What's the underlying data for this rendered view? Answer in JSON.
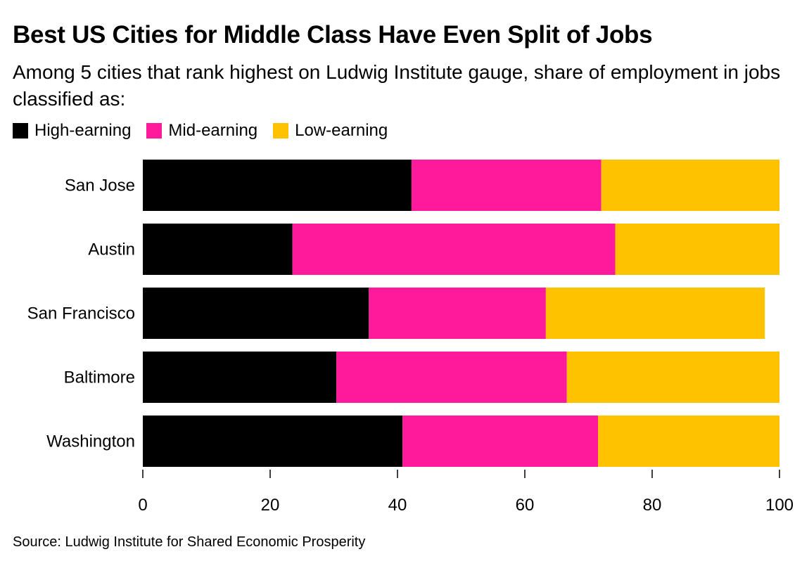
{
  "title": "Best US Cities for Middle Class Have Even Split of Jobs",
  "subtitle": "Among 5 cities that rank highest on Ludwig Institute gauge, share of employment in jobs classified as:",
  "source": "Source: Ludwig Institute for Shared Economic Prosperity",
  "chart_data": {
    "type": "bar",
    "orientation": "horizontal",
    "stacked": true,
    "categories": [
      "San Jose",
      "Austin",
      "San Francisco",
      "Baltimore",
      "Washington"
    ],
    "series": [
      {
        "name": "High-earning",
        "color": "#000000",
        "values": [
          42.2,
          23.5,
          35.5,
          30.4,
          40.8
        ]
      },
      {
        "name": "Mid-earning",
        "color": "#ff1a9c",
        "values": [
          29.8,
          50.7,
          27.8,
          36.2,
          30.7
        ]
      },
      {
        "name": "Low-earning",
        "color": "#ffc200",
        "values": [
          28.0,
          25.8,
          34.4,
          33.4,
          28.5
        ]
      }
    ],
    "xlim": [
      0,
      100
    ],
    "xticks": [
      0,
      20,
      40,
      60,
      80,
      100
    ],
    "legend_position": "top-left",
    "grid": false
  }
}
